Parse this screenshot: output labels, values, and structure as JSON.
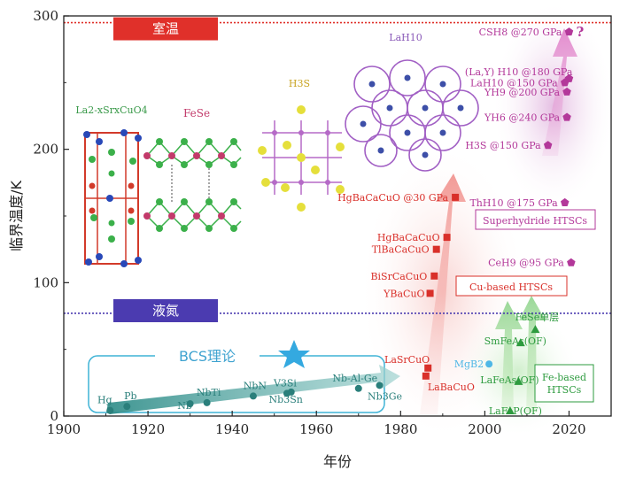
{
  "chart_data": {
    "type": "scatter",
    "xlabel": "年份",
    "ylabel": "临界温度/K",
    "xlim": [
      1900,
      2030
    ],
    "ylim": [
      0,
      300
    ],
    "x_ticks": [
      1900,
      1920,
      1940,
      1960,
      1980,
      2000,
      2020
    ],
    "y_ticks": [
      0,
      100,
      200,
      300
    ],
    "grid": false,
    "reference_lines": [
      {
        "label": "室温",
        "y": 295,
        "color": "#e0302a"
      },
      {
        "label": "液氮",
        "y": 77,
        "color": "#4b3bb0"
      }
    ],
    "series": [
      {
        "name": "BCS理论",
        "color": "#2a7f7b",
        "marker": "circle",
        "points": [
          {
            "label": "Hg",
            "x": 1911,
            "y": 4.2
          },
          {
            "label": "Pb",
            "x": 1915,
            "y": 7.2
          },
          {
            "label": "Nb",
            "x": 1930,
            "y": 9.2
          },
          {
            "label": "NbTi",
            "x": 1934,
            "y": 10
          },
          {
            "label": "NbN",
            "x": 1945,
            "y": 15
          },
          {
            "label": "V3Si",
            "x": 1953,
            "y": 17
          },
          {
            "label": "Nb3Sn",
            "x": 1954,
            "y": 18
          },
          {
            "label": "Nb-Al-Ge",
            "x": 1970,
            "y": 20.7
          },
          {
            "label": "Nb3Ge",
            "x": 1975,
            "y": 23
          }
        ]
      },
      {
        "name": "Cu-based HTSCs",
        "color": "#d9302a",
        "marker": "square",
        "points": [
          {
            "label": "LaBaCuO",
            "x": 1986,
            "y": 30
          },
          {
            "label": "LaSrCuO",
            "x": 1986.5,
            "y": 36
          },
          {
            "label": "YBaCuO",
            "x": 1987,
            "y": 92
          },
          {
            "label": "BiSrCaCuO",
            "x": 1988,
            "y": 105
          },
          {
            "label": "TlBaCaCuO",
            "x": 1988.5,
            "y": 125
          },
          {
            "label": "HgBaCaCuO",
            "x": 1991,
            "y": 134
          },
          {
            "label": "HgBaCaCuO @30 GPa",
            "x": 1993,
            "y": 164
          }
        ]
      },
      {
        "name": "Fe-based HTSCs",
        "color": "#2e9b3f",
        "marker": "triangle",
        "points": [
          {
            "label": "LaFeP(OF)",
            "x": 2006,
            "y": 4
          },
          {
            "label": "LaFeAs(OF)",
            "x": 2008,
            "y": 26
          },
          {
            "label": "MgB2",
            "x": 2001,
            "y": 39
          },
          {
            "label": "SmFeAs(OF)",
            "x": 2008.5,
            "y": 55
          },
          {
            "label": "FeSe单层",
            "x": 2012,
            "y": 65
          }
        ]
      },
      {
        "name": "Superhydride HTSCs",
        "color": "#b3389a",
        "marker": "pentagon",
        "points": [
          {
            "label": "CeH9 @95 GPa",
            "x": 2020.5,
            "y": 115
          },
          {
            "label": "ThH10 @175 GPa",
            "x": 2019,
            "y": 160
          },
          {
            "label": "H3S @150 GPa",
            "x": 2015,
            "y": 203
          },
          {
            "label": "YH6 @240 GPa",
            "x": 2019.5,
            "y": 224
          },
          {
            "label": "YH9 @200 GPa",
            "x": 2019.5,
            "y": 243
          },
          {
            "label": "LaH10 @150 GPa",
            "x": 2019,
            "y": 250
          },
          {
            "label": "(La,Y) H10 @180 GPa",
            "x": 2020,
            "y": 253
          },
          {
            "label": "CSH8 @270 GPa",
            "x": 2020,
            "y": 288
          }
        ]
      }
    ],
    "structure_labels": [
      "La2-xSrxCuO4",
      "FeSe",
      "H3S",
      "LaH10"
    ],
    "annotation_question": "?"
  }
}
